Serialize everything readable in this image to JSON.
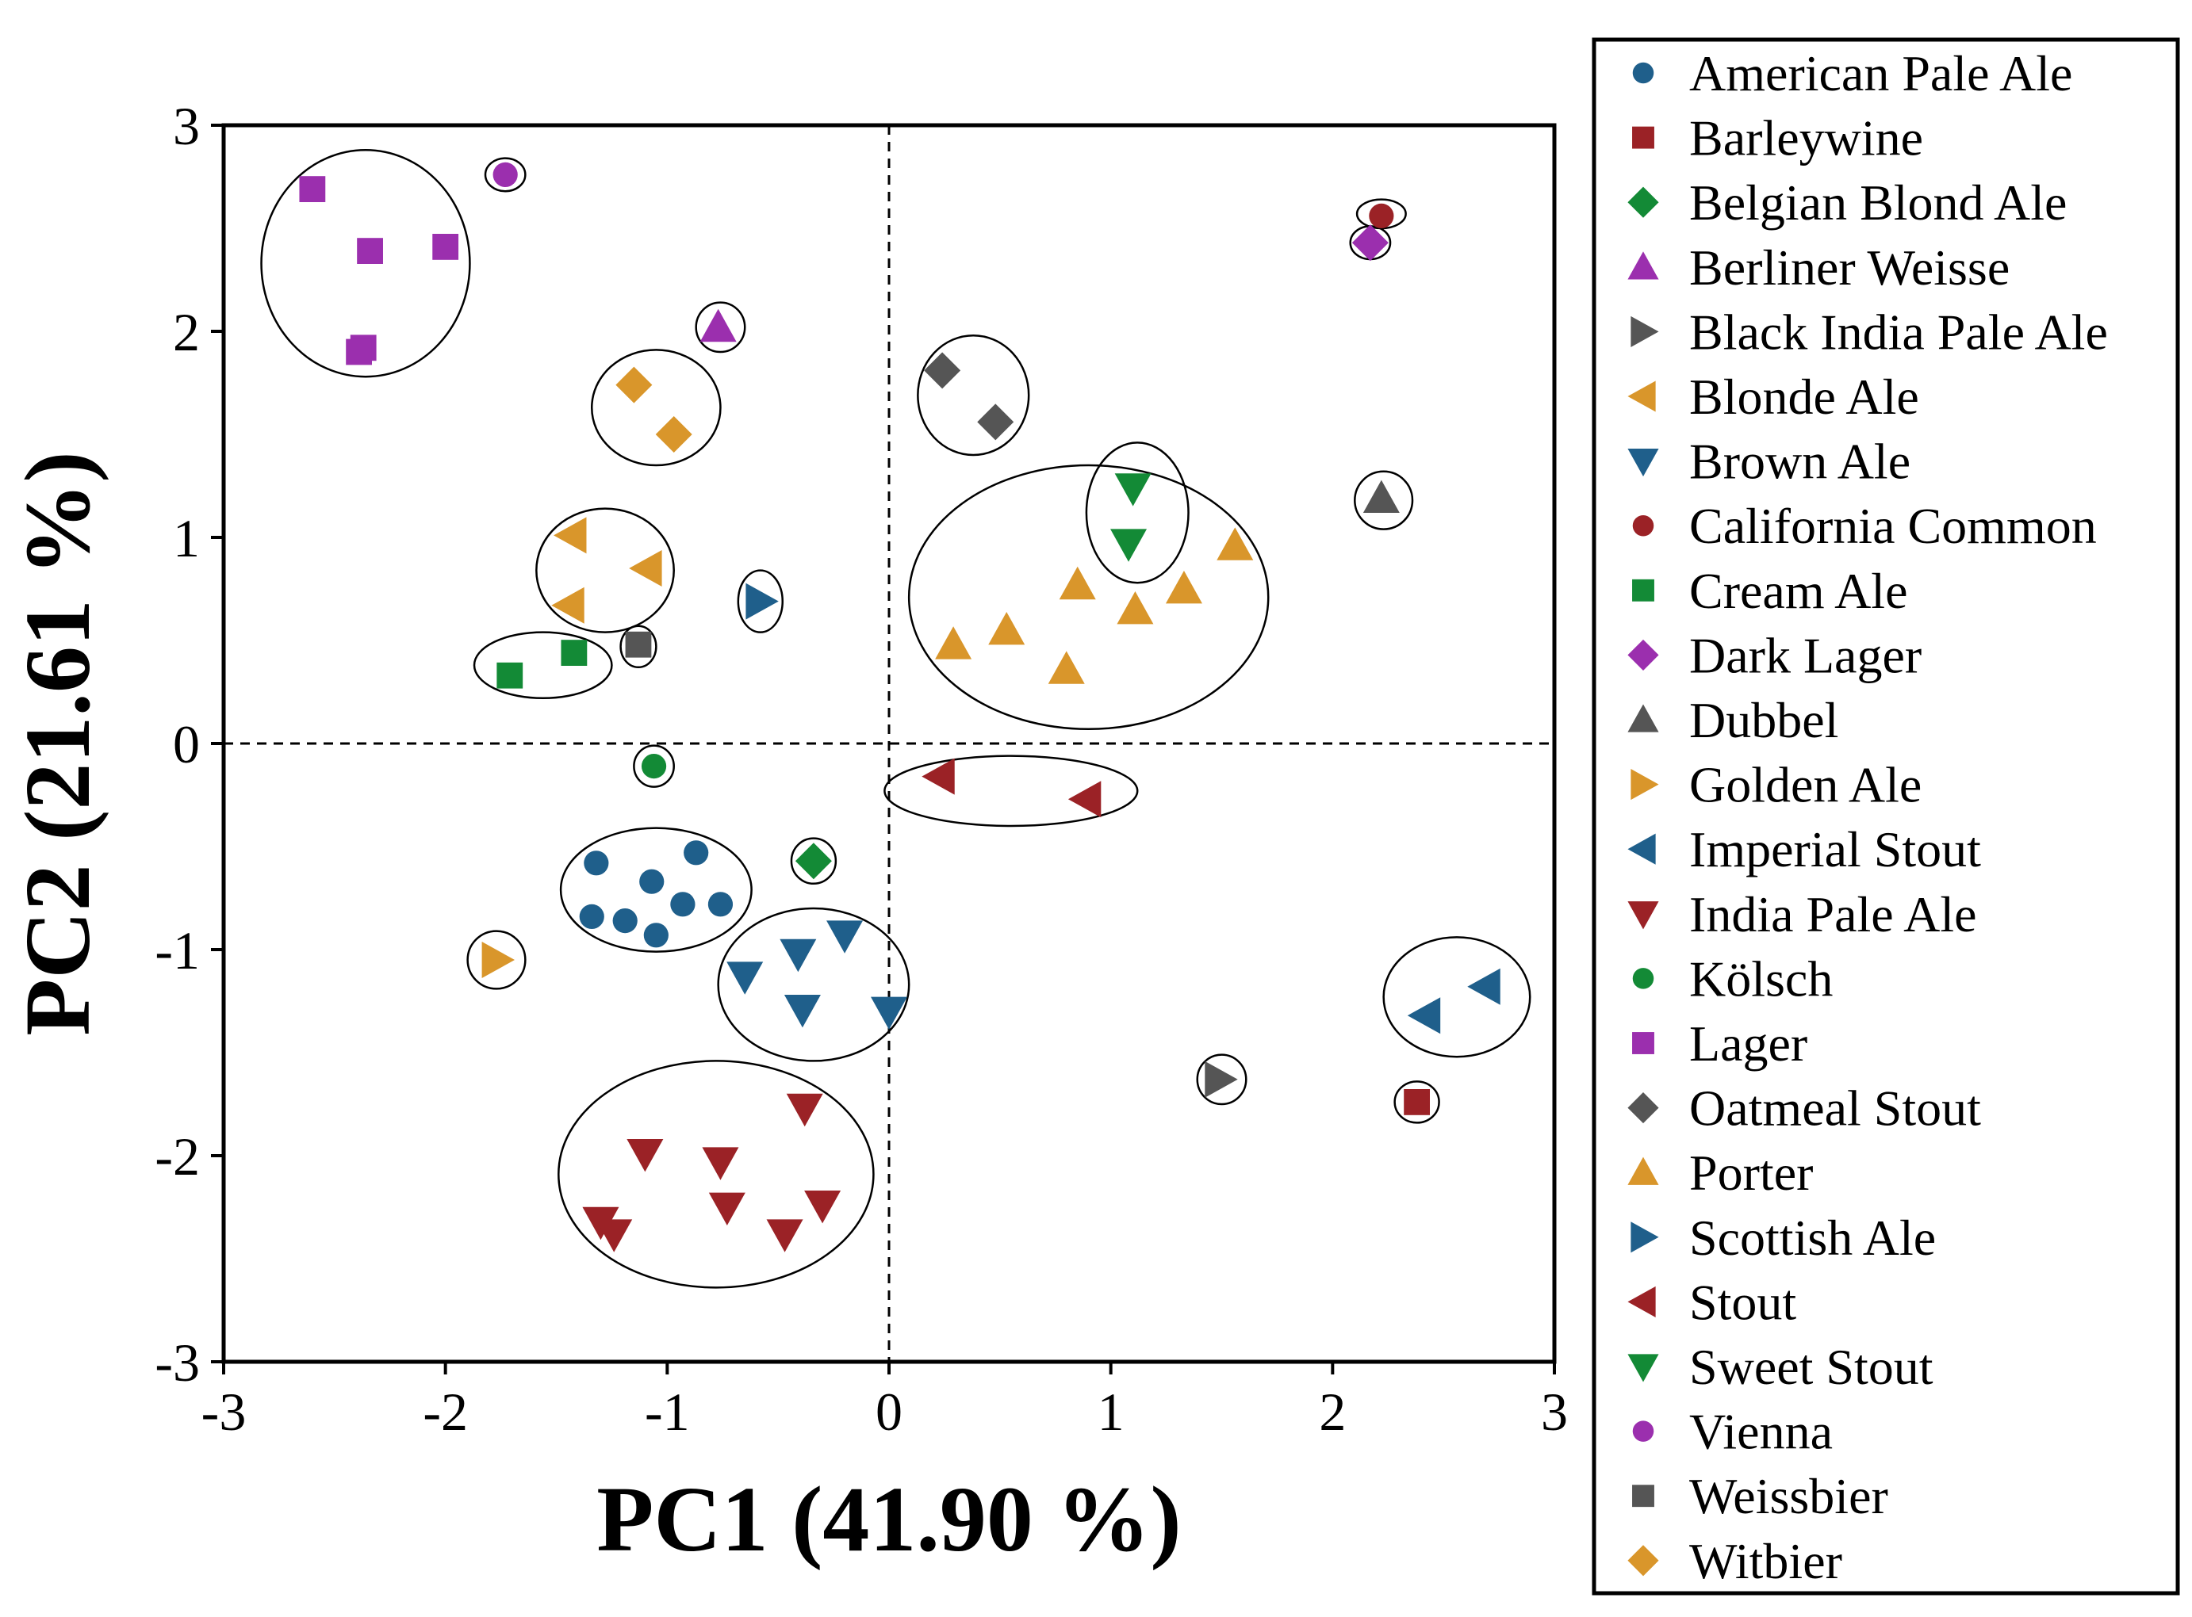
{
  "chart_data": {
    "type": "scatter",
    "xlabel": "PC1 (41.90 %)",
    "ylabel": "PC2 (21.61 %)",
    "xlim": [
      -3,
      3
    ],
    "ylim": [
      -3,
      3
    ],
    "xticks": [
      "-3",
      "-2",
      "-1",
      "0",
      "1",
      "2",
      "3"
    ],
    "yticks": [
      "-3",
      "-2",
      "-1",
      "0",
      "1",
      "2",
      "3"
    ],
    "reference_lines": {
      "x": 0,
      "y": 0,
      "style": "dashed"
    },
    "legend_position": "right",
    "series": [
      {
        "name": "American Pale Ale",
        "color": "#1f5f8b",
        "marker": "circle",
        "points": [
          [
            -1.32,
            -0.58
          ],
          [
            -1.07,
            -0.67
          ],
          [
            -0.87,
            -0.53
          ],
          [
            -1.34,
            -0.84
          ],
          [
            -1.19,
            -0.86
          ],
          [
            -0.93,
            -0.78
          ],
          [
            -0.76,
            -0.78
          ],
          [
            -1.05,
            -0.93
          ]
        ]
      },
      {
        "name": "Barleywine",
        "color": "#9b2226",
        "marker": "square",
        "points": [
          [
            2.38,
            -1.74
          ]
        ]
      },
      {
        "name": "Belgian Blond Ale",
        "color": "#138a36",
        "marker": "diamond",
        "points": [
          [
            -0.34,
            -0.57
          ]
        ]
      },
      {
        "name": "Berliner Weisse",
        "color": "#9b2fae",
        "marker": "triangle-up",
        "points": [
          [
            -0.77,
            2.02
          ]
        ]
      },
      {
        "name": "Black India Pale Ale",
        "color": "#555555",
        "marker": "triangle-right",
        "points": [
          [
            1.49,
            -1.63
          ]
        ]
      },
      {
        "name": "Blonde Ale",
        "color": "#d9962b",
        "marker": "triangle-left",
        "points": [
          [
            -1.43,
            1.01
          ],
          [
            -1.09,
            0.85
          ],
          [
            -1.44,
            0.67
          ]
        ]
      },
      {
        "name": "Brown Ale",
        "color": "#1f5f8b",
        "marker": "triangle-down",
        "points": [
          [
            -0.2,
            -0.93
          ],
          [
            -0.41,
            -1.02
          ],
          [
            -0.65,
            -1.13
          ],
          [
            -0.39,
            -1.29
          ],
          [
            0.0,
            -1.3
          ]
        ]
      },
      {
        "name": "California Common",
        "color": "#9b2226",
        "marker": "circle",
        "points": [
          [
            2.22,
            2.56
          ]
        ]
      },
      {
        "name": "Cream Ale",
        "color": "#138a36",
        "marker": "square",
        "points": [
          [
            -1.42,
            0.44
          ],
          [
            -1.71,
            0.33
          ]
        ]
      },
      {
        "name": "Dark Lager",
        "color": "#9b2fae",
        "marker": "diamond",
        "points": [
          [
            2.17,
            2.43
          ]
        ]
      },
      {
        "name": "Dubbel",
        "color": "#555555",
        "marker": "triangle-up",
        "points": [
          [
            2.22,
            1.19
          ]
        ]
      },
      {
        "name": "Golden Ale",
        "color": "#d9962b",
        "marker": "triangle-right",
        "points": [
          [
            -1.77,
            -1.05
          ]
        ]
      },
      {
        "name": "Imperial Stout",
        "color": "#1f5f8b",
        "marker": "triangle-left",
        "points": [
          [
            2.69,
            -1.18
          ],
          [
            2.42,
            -1.32
          ]
        ]
      },
      {
        "name": "India Pale Ale",
        "color": "#9b2226",
        "marker": "triangle-down",
        "points": [
          [
            -0.38,
            -1.77
          ],
          [
            -1.1,
            -1.99
          ],
          [
            -0.76,
            -2.03
          ],
          [
            -0.73,
            -2.25
          ],
          [
            -0.3,
            -2.24
          ],
          [
            -1.3,
            -2.32
          ],
          [
            -1.24,
            -2.38
          ],
          [
            -0.47,
            -2.38
          ]
        ]
      },
      {
        "name": "Kölsch",
        "color": "#138a36",
        "marker": "circle",
        "points": [
          [
            -1.06,
            -0.11
          ]
        ]
      },
      {
        "name": "Lager",
        "color": "#9b2fae",
        "marker": "square",
        "points": [
          [
            -2.6,
            2.69
          ],
          [
            -2.34,
            2.39
          ],
          [
            -2.0,
            2.41
          ],
          [
            -2.37,
            1.92
          ],
          [
            -2.39,
            1.9
          ]
        ]
      },
      {
        "name": "Oatmeal Stout",
        "color": "#555555",
        "marker": "diamond",
        "points": [
          [
            0.24,
            1.81
          ],
          [
            0.48,
            1.56
          ]
        ]
      },
      {
        "name": "Porter",
        "color": "#d9962b",
        "marker": "triangle-up",
        "points": [
          [
            1.56,
            0.96
          ],
          [
            0.85,
            0.77
          ],
          [
            1.33,
            0.75
          ],
          [
            1.11,
            0.65
          ],
          [
            0.53,
            0.55
          ],
          [
            0.29,
            0.48
          ],
          [
            0.8,
            0.36
          ]
        ]
      },
      {
        "name": "Scottish Ale",
        "color": "#1f5f8b",
        "marker": "triangle-right",
        "points": [
          [
            -0.58,
            0.69
          ]
        ]
      },
      {
        "name": "Stout",
        "color": "#9b2226",
        "marker": "triangle-left",
        "points": [
          [
            0.23,
            -0.16
          ],
          [
            0.89,
            -0.27
          ]
        ]
      },
      {
        "name": "Sweet Stout",
        "color": "#138a36",
        "marker": "triangle-down",
        "points": [
          [
            1.1,
            1.24
          ],
          [
            1.08,
            0.97
          ]
        ]
      },
      {
        "name": "Vienna",
        "color": "#9b2fae",
        "marker": "circle",
        "points": [
          [
            -1.73,
            2.76
          ]
        ]
      },
      {
        "name": "Weissbier",
        "color": "#555555",
        "marker": "square",
        "points": [
          [
            -1.13,
            0.48
          ]
        ]
      },
      {
        "name": "Witbier",
        "color": "#d9962b",
        "marker": "diamond",
        "points": [
          [
            -1.15,
            1.74
          ],
          [
            -0.97,
            1.5
          ]
        ]
      }
    ],
    "clusters": [
      {
        "cx": -2.36,
        "cy": 2.33,
        "rx": 0.47,
        "ry": 0.55
      },
      {
        "cx": -1.73,
        "cy": 2.76,
        "rx": 0.09,
        "ry": 0.08
      },
      {
        "cx": -0.76,
        "cy": 2.02,
        "rx": 0.11,
        "ry": 0.12
      },
      {
        "cx": -1.05,
        "cy": 1.63,
        "rx": 0.29,
        "ry": 0.28
      },
      {
        "cx": 0.38,
        "cy": 1.69,
        "rx": 0.25,
        "ry": 0.29
      },
      {
        "cx": 1.12,
        "cy": 1.12,
        "rx": 0.23,
        "ry": 0.34
      },
      {
        "cx": 0.9,
        "cy": 0.71,
        "rx": 0.81,
        "ry": 0.64
      },
      {
        "cx": 2.22,
        "cy": 2.57,
        "rx": 0.11,
        "ry": 0.07
      },
      {
        "cx": 2.17,
        "cy": 2.43,
        "rx": 0.09,
        "ry": 0.08
      },
      {
        "cx": 2.23,
        "cy": 1.18,
        "rx": 0.13,
        "ry": 0.14
      },
      {
        "cx": -1.28,
        "cy": 0.84,
        "rx": 0.31,
        "ry": 0.3
      },
      {
        "cx": -0.58,
        "cy": 0.69,
        "rx": 0.1,
        "ry": 0.15
      },
      {
        "cx": -1.56,
        "cy": 0.38,
        "rx": 0.31,
        "ry": 0.16
      },
      {
        "cx": -1.13,
        "cy": 0.47,
        "rx": 0.08,
        "ry": 0.1
      },
      {
        "cx": -1.06,
        "cy": -0.11,
        "rx": 0.09,
        "ry": 0.1
      },
      {
        "cx": 0.55,
        "cy": -0.23,
        "rx": 0.57,
        "ry": 0.17
      },
      {
        "cx": -0.34,
        "cy": -0.57,
        "rx": 0.1,
        "ry": 0.11
      },
      {
        "cx": -1.05,
        "cy": -0.71,
        "rx": 0.43,
        "ry": 0.3
      },
      {
        "cx": -1.77,
        "cy": -1.05,
        "rx": 0.13,
        "ry": 0.14
      },
      {
        "cx": -0.34,
        "cy": -1.17,
        "rx": 0.43,
        "ry": 0.37
      },
      {
        "cx": -0.78,
        "cy": -2.09,
        "rx": 0.71,
        "ry": 0.55
      },
      {
        "cx": 2.56,
        "cy": -1.23,
        "rx": 0.33,
        "ry": 0.29
      },
      {
        "cx": 1.5,
        "cy": -1.63,
        "rx": 0.11,
        "ry": 0.12
      },
      {
        "cx": 2.38,
        "cy": -1.74,
        "rx": 0.1,
        "ry": 0.1
      }
    ]
  }
}
